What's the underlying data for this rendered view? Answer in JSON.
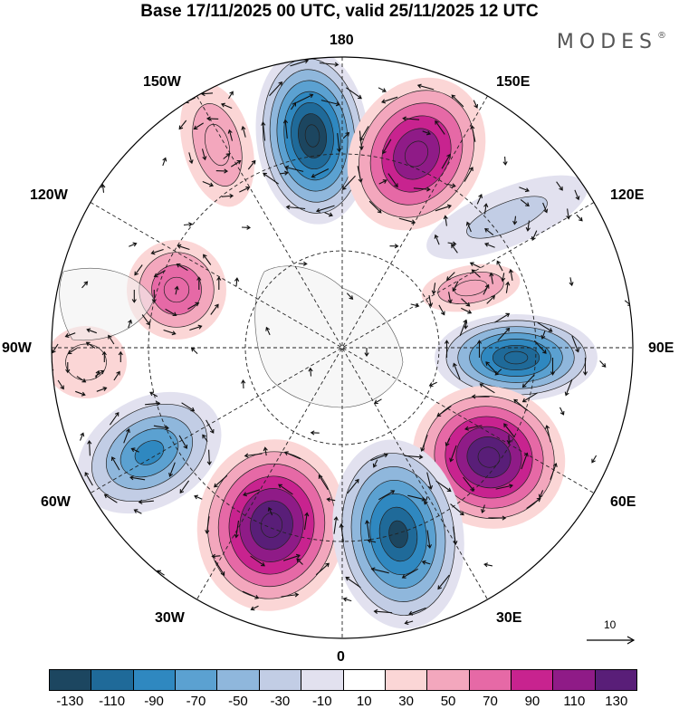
{
  "title": "Base 17/11/2025 00 UTC, valid 25/11/2025 12 UTC",
  "brand": "MODES",
  "brand_mark": "®",
  "longitude_labels": {
    "lon_180": "180",
    "lon_150e": "150E",
    "lon_120e": "120E",
    "lon_90e": "90E",
    "lon_60e": "60E",
    "lon_30e": "30E",
    "lon_0": "0",
    "lon_30w": "30W",
    "lon_60w": "60W",
    "lon_90w": "90W",
    "lon_120w": "120W",
    "lon_150w": "150W"
  },
  "reference_vector": {
    "label": "10"
  },
  "colorbar": {
    "tick_labels": [
      "-130",
      "-110",
      "-90",
      "-70",
      "-50",
      "-30",
      "-10",
      "10",
      "30",
      "50",
      "70",
      "90",
      "110",
      "130"
    ],
    "colors": [
      "#1c4660",
      "#1f6a99",
      "#2f88c0",
      "#5ba1d1",
      "#8fb7dc",
      "#c2cde5",
      "#e2e1ef",
      "#ffffff",
      "#fbd6d6",
      "#f3a7bd",
      "#e669a6",
      "#c8238f",
      "#8f1b87",
      "#591e78"
    ]
  },
  "anomaly_centers": [
    {
      "name": "low-180",
      "value": -150,
      "color": "#1c4660"
    },
    {
      "name": "high-150e",
      "value": 120,
      "color": "#8f1b87"
    },
    {
      "name": "high-150w",
      "value": 50,
      "color": "#f3a7bd"
    },
    {
      "name": "low-110e",
      "value": -40,
      "color": "#c2cde5"
    },
    {
      "name": "high-120e",
      "value": 50,
      "color": "#f3a7bd"
    },
    {
      "name": "high-110w",
      "value": 70,
      "color": "#e669a6"
    },
    {
      "name": "high-95w",
      "value": 40,
      "color": "#fbd6d6"
    },
    {
      "name": "low-90e",
      "value": -130,
      "color": "#1f6a99"
    },
    {
      "name": "low-60w",
      "value": -100,
      "color": "#2f88c0"
    },
    {
      "name": "high-60e",
      "value": 130,
      "color": "#591e78"
    },
    {
      "name": "high-30w",
      "value": 130,
      "color": "#591e78"
    },
    {
      "name": "low-30e",
      "value": -140,
      "color": "#1c4660"
    }
  ]
}
